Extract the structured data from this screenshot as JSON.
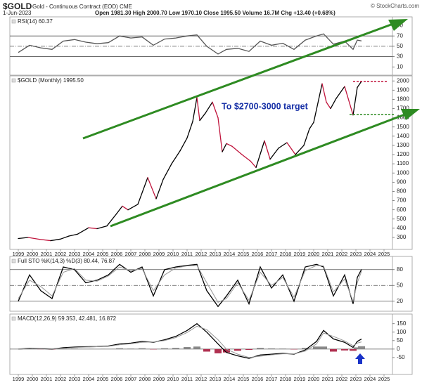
{
  "header": {
    "symbol": "$GOLD",
    "name": "Gold - Continuous Contract (EOD) CME",
    "date": "1-Jun-2023",
    "quote": "Open 1981.30 High 2000.70 Low 1970.10 Close 1995.50 Volume 16.7M Chg +13.40 (+0.68%)",
    "credit": "© StockCharts.com"
  },
  "chart_data": [
    {
      "type": "line",
      "title": "RSI(14) 60.37",
      "xlim": [
        1998.4,
        2025.6
      ],
      "ylim": [
        -6,
        107
      ],
      "yticks": [
        10,
        30,
        50,
        70,
        90
      ],
      "hlines": [
        30,
        70
      ],
      "dash_lines": [
        50
      ],
      "x": [
        1999,
        1999.8,
        2000.6,
        2001.4,
        2002.2,
        2003,
        2003.8,
        2004.6,
        2005.4,
        2006.2,
        2007,
        2007.8,
        2008.6,
        2009.4,
        2010.2,
        2011,
        2011.7,
        2012.4,
        2013.2,
        2013.8,
        2014.6,
        2015.4,
        2016.2,
        2017,
        2017.8,
        2018.6,
        2019.4,
        2020.2,
        2020.7,
        2021.4,
        2022.2,
        2022.8,
        2023.1,
        2023.4
      ],
      "series": [
        {
          "color": "#555",
          "values": [
            38,
            52,
            47,
            44,
            60,
            63,
            58,
            55,
            57,
            70,
            66,
            68,
            52,
            64,
            66,
            70,
            72,
            50,
            35,
            44,
            46,
            40,
            60,
            52,
            56,
            44,
            62,
            70,
            74,
            54,
            60,
            44,
            62,
            60.37
          ]
        }
      ]
    },
    {
      "type": "line",
      "title": "$GOLD (Monthly) 1995.50",
      "annotation": "To $2700-3000 target",
      "xlim": [
        1998.4,
        2025.6
      ],
      "ylim": [
        170,
        2055
      ],
      "yticks": [
        300,
        400,
        500,
        600,
        700,
        800,
        900,
        1000,
        1100,
        1200,
        1300,
        1400,
        1500,
        1600,
        1700,
        1800,
        1900,
        2000
      ],
      "xticks": [
        1999,
        2000,
        2001,
        2002,
        2003,
        2004,
        2005,
        2006,
        2007,
        2008,
        2009,
        2010,
        2011,
        2012,
        2013,
        2014,
        2015,
        2016,
        2017,
        2018,
        2019,
        2020,
        2021,
        2022,
        2023,
        2024,
        2025
      ],
      "x": [
        1999.0,
        1999.7,
        2000.5,
        2001.3,
        2002.0,
        2002.6,
        2003.2,
        2004.0,
        2004.6,
        2005.3,
        2006.0,
        2006.4,
        2006.8,
        2007.5,
        2008.2,
        2008.8,
        2009.3,
        2009.9,
        2010.5,
        2011.0,
        2011.4,
        2011.7,
        2011.9,
        2012.3,
        2012.8,
        2013.2,
        2013.5,
        2013.8,
        2014.2,
        2014.9,
        2015.5,
        2015.9,
        2016.5,
        2016.9,
        2017.5,
        2018.1,
        2018.7,
        2019.3,
        2019.7,
        2020.0,
        2020.6,
        2020.9,
        2021.2,
        2021.6,
        2022.2,
        2022.8,
        2023.1,
        2023.4
      ],
      "series": [
        {
          "color": "#000",
          "down_color": "#c0143c",
          "values": [
            288,
            300,
            280,
            265,
            282,
            315,
            335,
            405,
            395,
            425,
            560,
            640,
            600,
            660,
            950,
            720,
            930,
            1100,
            1240,
            1380,
            1560,
            1820,
            1570,
            1650,
            1770,
            1600,
            1230,
            1320,
            1290,
            1200,
            1130,
            1060,
            1350,
            1150,
            1270,
            1330,
            1200,
            1300,
            1480,
            1550,
            1970,
            1770,
            1700,
            1810,
            1940,
            1630,
            1930,
            1995.5
          ]
        }
      ]
    },
    {
      "type": "line",
      "title": "Full STO %K(14,3) %D(3) 80.44, 76.87",
      "xlim": [
        1998.4,
        2025.6
      ],
      "ylim": [
        1,
        105
      ],
      "yticks": [
        20,
        50,
        80
      ],
      "hlines": [
        20,
        80
      ],
      "dash_lines": [
        50
      ],
      "x": [
        1999,
        1999.8,
        2000.6,
        2001.4,
        2002.2,
        2003,
        2003.8,
        2004.6,
        2005.4,
        2006.2,
        2007,
        2007.8,
        2008.6,
        2009.4,
        2010.2,
        2011,
        2011.7,
        2012.4,
        2013.2,
        2013.8,
        2014.6,
        2015.4,
        2016.2,
        2017,
        2017.8,
        2018.6,
        2019.4,
        2020.2,
        2020.7,
        2021.4,
        2022.2,
        2022.8,
        2023.1,
        2023.4
      ],
      "series": [
        {
          "color": "#000",
          "values": [
            20,
            70,
            40,
            25,
            85,
            80,
            55,
            60,
            70,
            90,
            75,
            85,
            30,
            80,
            85,
            88,
            90,
            40,
            10,
            30,
            60,
            15,
            85,
            45,
            70,
            20,
            85,
            90,
            85,
            30,
            70,
            15,
            65,
            80.44
          ]
        },
        {
          "color": "#999",
          "values": [
            25,
            60,
            48,
            30,
            75,
            82,
            60,
            58,
            68,
            85,
            78,
            82,
            40,
            70,
            83,
            87,
            88,
            55,
            18,
            25,
            55,
            22,
            75,
            50,
            65,
            28,
            78,
            88,
            87,
            38,
            62,
            20,
            55,
            76.87
          ]
        }
      ]
    },
    {
      "type": "line",
      "title": "MACD(12,26,9) 59.353, 42.481, 16.872",
      "xlim": [
        1998.4,
        2025.6
      ],
      "ylim": [
        -150,
        207
      ],
      "yticks": [
        -50,
        0,
        50,
        100,
        150
      ],
      "hlines": [
        0
      ],
      "xticks": [
        1999,
        2000,
        2001,
        2002,
        2003,
        2004,
        2005,
        2006,
        2007,
        2008,
        2009,
        2010,
        2011,
        2012,
        2013,
        2014,
        2015,
        2016,
        2017,
        2018,
        2019,
        2020,
        2021,
        2022,
        2023,
        2024,
        2025
      ],
      "x": [
        1999,
        1999.8,
        2000.6,
        2001.4,
        2002.2,
        2003,
        2003.8,
        2004.6,
        2005.4,
        2006.2,
        2007,
        2007.8,
        2008.6,
        2009.4,
        2010.2,
        2011,
        2011.7,
        2012.4,
        2013.2,
        2013.8,
        2014.6,
        2015.4,
        2016.2,
        2017,
        2017.8,
        2018.6,
        2019.4,
        2020.2,
        2020.7,
        2021.4,
        2022.2,
        2022.8,
        2023.1,
        2023.4
      ],
      "series": [
        {
          "kind": "bar",
          "color": "#8a8a8a",
          "neg_color": "#b03050",
          "values": [
            0,
            2,
            -1,
            -2,
            3,
            3,
            2,
            1,
            2,
            5,
            3,
            5,
            -2,
            5,
            7,
            12,
            15,
            -15,
            -25,
            -20,
            -10,
            -5,
            7,
            4,
            3,
            -2,
            7,
            15,
            15,
            -15,
            -8,
            -10,
            10,
            16.872
          ]
        },
        {
          "color": "#000",
          "values": [
            0,
            5,
            3,
            0,
            8,
            12,
            14,
            15,
            18,
            30,
            35,
            45,
            40,
            55,
            75,
            110,
            150,
            100,
            30,
            -20,
            -40,
            -55,
            -35,
            -30,
            -25,
            -30,
            -5,
            45,
            110,
            60,
            40,
            10,
            45,
            59.353
          ]
        },
        {
          "color": "#999",
          "values": [
            0,
            3,
            4,
            2,
            5,
            9,
            12,
            14,
            16,
            25,
            32,
            40,
            42,
            50,
            68,
            98,
            135,
            115,
            55,
            0,
            -30,
            -50,
            -42,
            -34,
            -28,
            -28,
            -12,
            30,
            95,
            75,
            48,
            20,
            35,
            42.481
          ]
        }
      ]
    }
  ]
}
